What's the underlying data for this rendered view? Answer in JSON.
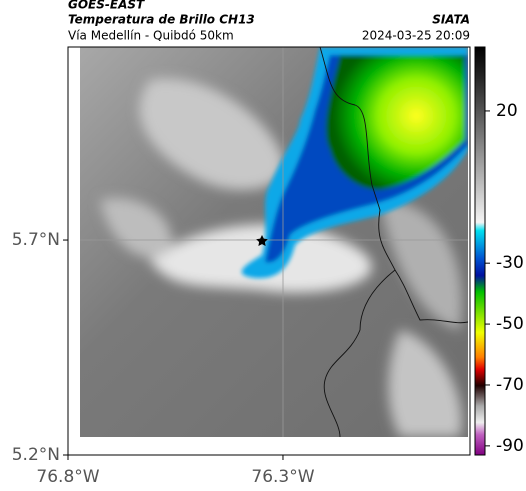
{
  "header": {
    "source": "GOES-EAST",
    "title": "Temperatura de Brillo CH13",
    "subtitle": "Vía Medellín - Quibdó 50km",
    "brand": "SIATA",
    "datetime": "2024-03-25 20:09"
  },
  "map": {
    "xlim": [
      -76.8,
      -75.865
    ],
    "ylim": [
      5.2,
      6.149
    ],
    "xticks": [
      {
        "value": -76.8,
        "label": "76.8°W"
      },
      {
        "value": -76.3,
        "label": "76.3°W"
      }
    ],
    "yticks": [
      {
        "value": 5.7,
        "label": "5.7°N"
      },
      {
        "value": 5.2,
        "label": "5.2°N"
      }
    ]
  },
  "colorbar": {
    "lim": [
      -93,
      41
    ],
    "ticks": [
      20,
      -30,
      -50,
      -70,
      -90
    ]
  }
}
